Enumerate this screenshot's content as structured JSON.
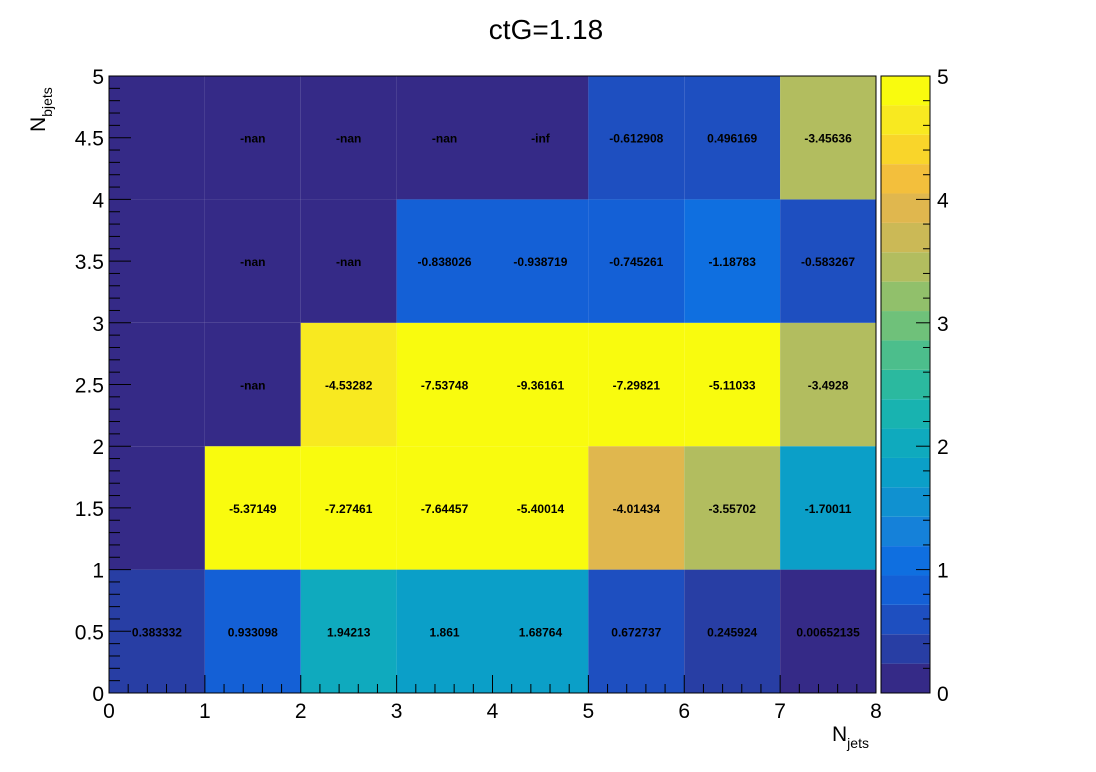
{
  "chart_data": {
    "type": "heatmap",
    "title": "ctG=1.18",
    "xlabel": {
      "main": "N",
      "sub": "jets"
    },
    "ylabel": {
      "main": "N",
      "sub": "bjets"
    },
    "x_edges": [
      0,
      1,
      2,
      3,
      4,
      5,
      6,
      7,
      8
    ],
    "y_edges": [
      0,
      1,
      2,
      3,
      4,
      5
    ],
    "xlim": [
      0,
      8
    ],
    "ylim": [
      0,
      5
    ],
    "zlim": [
      0,
      5
    ],
    "x_tick_labels": [
      "0",
      "1",
      "2",
      "3",
      "4",
      "5",
      "6",
      "7",
      "8"
    ],
    "y_tick_labels": [
      "0",
      "0.5",
      "1",
      "1.5",
      "2",
      "2.5",
      "3",
      "3.5",
      "4",
      "4.5",
      "5"
    ],
    "colorbar_tick_labels": [
      "0",
      "1",
      "2",
      "3",
      "4",
      "5"
    ],
    "colormap": "parula",
    "palette": [
      "#352a87",
      "#283ea4",
      "#1e4fc0",
      "#1460d6",
      "#0f6fe0",
      "#1581d9",
      "#1091d0",
      "#0b9fc8",
      "#0faabe",
      "#18b3b0",
      "#2bb99f",
      "#4cbe8c",
      "#6fc17a",
      "#91c06b",
      "#b2bd5f",
      "#cbb956",
      "#e0b74e",
      "#f3bf3c",
      "#f9d52a",
      "#f8e920",
      "#f9fb0e"
    ],
    "cells": [
      {
        "x": 0.5,
        "y": 0.5,
        "color_value": 0.383332,
        "label": "0.383332"
      },
      {
        "x": 1.5,
        "y": 0.5,
        "color_value": 0.933098,
        "label": "0.933098"
      },
      {
        "x": 2.5,
        "y": 0.5,
        "color_value": 1.94213,
        "label": "1.94213"
      },
      {
        "x": 3.5,
        "y": 0.5,
        "color_value": 1.861,
        "label": "1.861"
      },
      {
        "x": 4.5,
        "y": 0.5,
        "color_value": 1.68764,
        "label": "1.68764"
      },
      {
        "x": 5.5,
        "y": 0.5,
        "color_value": 0.672737,
        "label": "0.672737"
      },
      {
        "x": 6.5,
        "y": 0.5,
        "color_value": 0.245924,
        "label": "0.245924"
      },
      {
        "x": 7.5,
        "y": 0.5,
        "color_value": 0.00652135,
        "label": "0.00652135"
      },
      {
        "x": 0.5,
        "y": 1.5,
        "color_value": 0.1,
        "label": ""
      },
      {
        "x": 1.5,
        "y": 1.5,
        "color_value": 5,
        "label": "-5.37149"
      },
      {
        "x": 2.5,
        "y": 1.5,
        "color_value": 5,
        "label": "-7.27461"
      },
      {
        "x": 3.5,
        "y": 1.5,
        "color_value": 5,
        "label": "-7.64457"
      },
      {
        "x": 4.5,
        "y": 1.5,
        "color_value": 5,
        "label": "-5.40014"
      },
      {
        "x": 5.5,
        "y": 1.5,
        "color_value": 4.01434,
        "label": "-4.01434"
      },
      {
        "x": 6.5,
        "y": 1.5,
        "color_value": 3.55702,
        "label": "-3.55702"
      },
      {
        "x": 7.5,
        "y": 1.5,
        "color_value": 1.70011,
        "label": "-1.70011"
      },
      {
        "x": 0.5,
        "y": 2.5,
        "color_value": 0.1,
        "label": ""
      },
      {
        "x": 1.5,
        "y": 2.5,
        "color_value": 0.0,
        "label": "-nan"
      },
      {
        "x": 2.5,
        "y": 2.5,
        "color_value": 4.53282,
        "label": "-4.53282"
      },
      {
        "x": 3.5,
        "y": 2.5,
        "color_value": 5,
        "label": "-7.53748"
      },
      {
        "x": 4.5,
        "y": 2.5,
        "color_value": 5,
        "label": "-9.36161"
      },
      {
        "x": 5.5,
        "y": 2.5,
        "color_value": 5,
        "label": "-7.29821"
      },
      {
        "x": 6.5,
        "y": 2.5,
        "color_value": 5,
        "label": "-5.11033"
      },
      {
        "x": 7.5,
        "y": 2.5,
        "color_value": 3.4928,
        "label": "-3.4928"
      },
      {
        "x": 0.5,
        "y": 3.5,
        "color_value": 0.1,
        "label": ""
      },
      {
        "x": 1.5,
        "y": 3.5,
        "color_value": 0.0,
        "label": "-nan"
      },
      {
        "x": 2.5,
        "y": 3.5,
        "color_value": 0.0,
        "label": "-nan"
      },
      {
        "x": 3.5,
        "y": 3.5,
        "color_value": 0.838026,
        "label": "-0.838026"
      },
      {
        "x": 4.5,
        "y": 3.5,
        "color_value": 0.938719,
        "label": "-0.938719"
      },
      {
        "x": 5.5,
        "y": 3.5,
        "color_value": 0.745261,
        "label": "-0.745261"
      },
      {
        "x": 6.5,
        "y": 3.5,
        "color_value": 1.18783,
        "label": "-1.18783"
      },
      {
        "x": 7.5,
        "y": 3.5,
        "color_value": 0.583267,
        "label": "-0.583267"
      },
      {
        "x": 0.5,
        "y": 4.5,
        "color_value": 0.1,
        "label": ""
      },
      {
        "x": 1.5,
        "y": 4.5,
        "color_value": 0.0,
        "label": "-nan"
      },
      {
        "x": 2.5,
        "y": 4.5,
        "color_value": 0.0,
        "label": "-nan"
      },
      {
        "x": 3.5,
        "y": 4.5,
        "color_value": 0.0,
        "label": "-nan"
      },
      {
        "x": 4.5,
        "y": 4.5,
        "color_value": 0.0,
        "label": "-inf"
      },
      {
        "x": 5.5,
        "y": 4.5,
        "color_value": 0.612908,
        "label": "-0.612908"
      },
      {
        "x": 6.5,
        "y": 4.5,
        "color_value": 0.496169,
        "label": "0.496169"
      },
      {
        "x": 7.5,
        "y": 4.5,
        "color_value": 3.45636,
        "label": "-3.45636"
      }
    ]
  }
}
